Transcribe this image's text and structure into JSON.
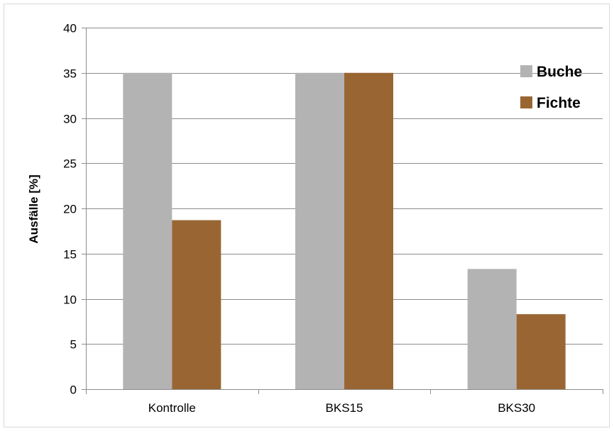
{
  "chart_data": {
    "type": "bar",
    "title": "",
    "xlabel": "",
    "ylabel": "Ausfälle [%]",
    "ylim": [
      0,
      40
    ],
    "yticks": [
      0,
      5,
      10,
      15,
      20,
      25,
      30,
      35,
      40
    ],
    "grid": true,
    "legend_position": "top-right",
    "categories": [
      "Kontrolle",
      "BKS15",
      "BKS30"
    ],
    "series": [
      {
        "name": "Buche",
        "color": "#b3b3b3",
        "values": [
          35,
          35,
          13.3
        ]
      },
      {
        "name": "Fichte",
        "color": "#996633",
        "values": [
          18.7,
          35,
          8.3
        ]
      }
    ]
  }
}
